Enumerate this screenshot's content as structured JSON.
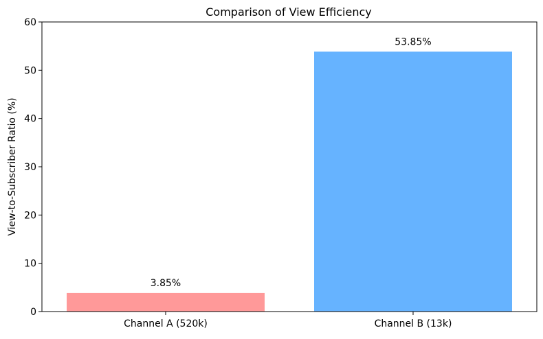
{
  "chart_data": {
    "type": "bar",
    "title": "Comparison of View Efficiency",
    "xlabel": "",
    "ylabel": "View-to-Subscriber Ratio (%)",
    "ylim": [
      0,
      60
    ],
    "yticks": [
      0,
      10,
      20,
      30,
      40,
      50,
      60
    ],
    "categories": [
      "Channel A (520k)",
      "Channel B (13k)"
    ],
    "values": [
      3.85,
      53.85
    ],
    "data_labels": [
      "3.85%",
      "53.85%"
    ],
    "colors": [
      "#ff9999",
      "#66b3ff"
    ],
    "grid": false,
    "legend": "none"
  }
}
